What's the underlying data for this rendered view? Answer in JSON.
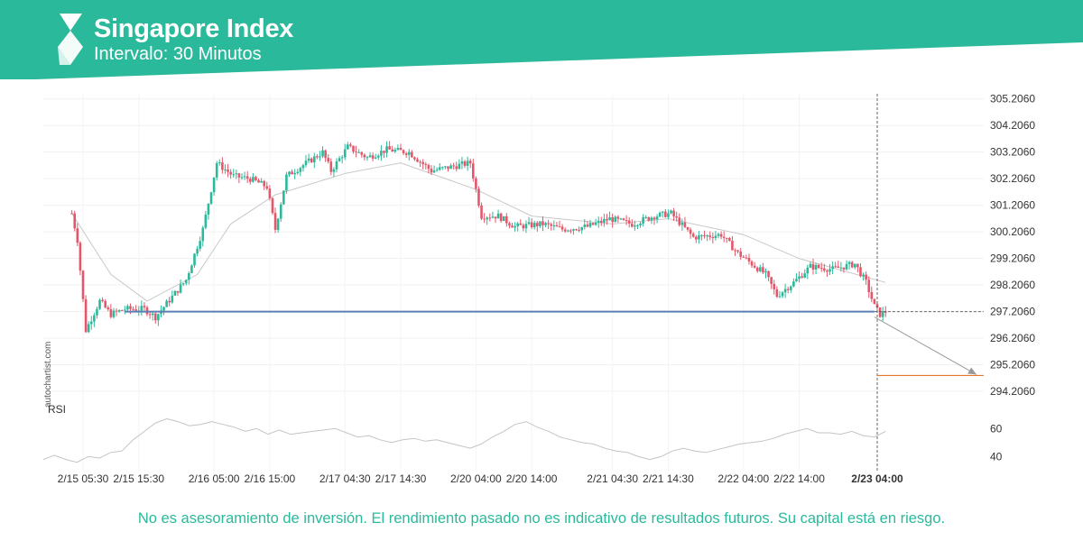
{
  "header": {
    "title": "Singapore Index",
    "subtitle": "Intervalo: 30 Minutos",
    "colors": {
      "band": "#2bb99b",
      "band_dark": "#1f9e84",
      "logo": "#ffffff"
    }
  },
  "brand": "autochartist.com",
  "disclaimer": "No es asesoramiento de inversión. El rendimiento pasado no es indicativo de resultados futuros. Su capital está en riesgo.",
  "chart_data": {
    "type": "candlestick",
    "instrument": "Singapore Index",
    "interval": "30 Minutos",
    "ylim": [
      294.0,
      305.4
    ],
    "y_ticks": [
      "305.2060",
      "304.2060",
      "303.2060",
      "302.2060",
      "301.2060",
      "300.2060",
      "299.2060",
      "298.2060",
      "297.2060",
      "296.2060",
      "295.2060",
      "294.2060"
    ],
    "x_ticks": [
      "2/15 05:30",
      "2/15 15:30",
      "2/16 05:00",
      "2/16 15:00",
      "2/17 04:30",
      "2/17 14:30",
      "2/20 04:00",
      "2/20 14:00",
      "2/21 04:30",
      "2/21 14:30",
      "2/22 04:00",
      "2/22 14:00",
      "2/23 04:00"
    ],
    "highlighted_x_tick": "2/23 04:00",
    "close_anchors": [
      {
        "x": "2/15 03:30",
        "y": 300.9
      },
      {
        "x": "2/15 04:30",
        "y": 299.9
      },
      {
        "x": "2/15 06:00",
        "y": 296.5
      },
      {
        "x": "2/15 08:30",
        "y": 297.6
      },
      {
        "x": "2/15 10:30",
        "y": 297.1
      },
      {
        "x": "2/15 13:00",
        "y": 297.3
      },
      {
        "x": "2/15 16:30",
        "y": 297.3
      },
      {
        "x": "2/15 18:30",
        "y": 297.0
      },
      {
        "x": "2/16 00:00",
        "y": 298.4
      },
      {
        "x": "2/16 03:00",
        "y": 300.3
      },
      {
        "x": "2/16 05:30",
        "y": 302.8
      },
      {
        "x": "2/16 08:30",
        "y": 302.3
      },
      {
        "x": "2/16 11:30",
        "y": 302.2
      },
      {
        "x": "2/16 14:30",
        "y": 301.9
      },
      {
        "x": "2/16 16:00",
        "y": 300.3
      },
      {
        "x": "2/16 18:00",
        "y": 302.3
      },
      {
        "x": "2/17 00:30",
        "y": 303.2
      },
      {
        "x": "2/17 02:00",
        "y": 302.5
      },
      {
        "x": "2/17 05:00",
        "y": 303.4
      },
      {
        "x": "2/17 08:30",
        "y": 303.0
      },
      {
        "x": "2/17 12:00",
        "y": 303.3
      },
      {
        "x": "2/17 16:00",
        "y": 303.2
      },
      {
        "x": "2/17 20:00",
        "y": 302.5
      },
      {
        "x": "2/20 03:00",
        "y": 302.8
      },
      {
        "x": "2/20 05:00",
        "y": 300.8
      },
      {
        "x": "2/20 08:00",
        "y": 300.8
      },
      {
        "x": "2/20 11:00",
        "y": 300.4
      },
      {
        "x": "2/20 16:00",
        "y": 300.5
      },
      {
        "x": "2/20 19:30",
        "y": 300.3
      },
      {
        "x": "2/21 00:00",
        "y": 300.4
      },
      {
        "x": "2/21 04:00",
        "y": 300.7
      },
      {
        "x": "2/21 08:00",
        "y": 300.5
      },
      {
        "x": "2/21 12:00",
        "y": 300.8
      },
      {
        "x": "2/21 15:00",
        "y": 300.9
      },
      {
        "x": "2/21 19:00",
        "y": 300.0
      },
      {
        "x": "2/22 00:00",
        "y": 300.1
      },
      {
        "x": "2/22 03:00",
        "y": 299.4
      },
      {
        "x": "2/22 08:00",
        "y": 298.6
      },
      {
        "x": "2/22 10:00",
        "y": 297.8
      },
      {
        "x": "2/22 13:00",
        "y": 298.3
      },
      {
        "x": "2/22 16:00",
        "y": 298.9
      },
      {
        "x": "2/22 20:00",
        "y": 298.8
      },
      {
        "x": "2/23 00:00",
        "y": 299.0
      },
      {
        "x": "2/23 02:00",
        "y": 298.3
      },
      {
        "x": "2/23 03:30",
        "y": 297.4
      },
      {
        "x": "2/23 04:30",
        "y": 297.1
      },
      {
        "x": "2/23 05:30",
        "y": 297.2
      }
    ],
    "extremes": {
      "high": 304.5,
      "low": 296.2
    },
    "moving_average": {
      "name": "MA",
      "color": "#c8c8c8",
      "values": [
        {
          "x": "2/15 03:30",
          "y": 300.9
        },
        {
          "x": "2/15 10:30",
          "y": 298.6
        },
        {
          "x": "2/15 17:00",
          "y": 297.6
        },
        {
          "x": "2/16 02:00",
          "y": 298.6
        },
        {
          "x": "2/16 08:00",
          "y": 300.5
        },
        {
          "x": "2/16 16:00",
          "y": 301.6
        },
        {
          "x": "2/17 04:30",
          "y": 302.4
        },
        {
          "x": "2/17 14:30",
          "y": 302.8
        },
        {
          "x": "2/20 04:00",
          "y": 301.8
        },
        {
          "x": "2/20 14:00",
          "y": 300.8
        },
        {
          "x": "2/21 04:30",
          "y": 300.5
        },
        {
          "x": "2/21 14:30",
          "y": 300.7
        },
        {
          "x": "2/22 04:00",
          "y": 300.1
        },
        {
          "x": "2/22 14:00",
          "y": 299.2
        },
        {
          "x": "2/23 05:30",
          "y": 298.3
        }
      ]
    },
    "support_line": {
      "value": 297.2,
      "from": "2/15 13:00",
      "to": "2/23 03:30",
      "color": "#5b7fb5"
    },
    "current_price": {
      "value": 297.2
    },
    "forecast": {
      "from": {
        "x": "2/23 03:30",
        "y": 297.0
      },
      "to": {
        "x": "2/23 19:00",
        "y": 294.8
      },
      "target": 294.8,
      "color": "#e8772e"
    },
    "rsi": {
      "name": "RSI",
      "y_ticks": [
        "60",
        "40"
      ],
      "values": [
        38,
        41,
        38,
        36,
        40,
        39,
        43,
        44,
        52,
        58,
        64,
        67,
        65,
        62,
        63,
        65,
        63,
        61,
        58,
        60,
        56,
        59,
        56,
        57,
        58,
        59,
        60,
        57,
        54,
        55,
        52,
        50,
        52,
        53,
        51,
        52,
        50,
        48,
        46,
        49,
        54,
        58,
        63,
        65,
        61,
        58,
        54,
        52,
        50,
        49,
        46,
        44,
        43,
        40,
        38,
        40,
        44,
        46,
        44,
        43,
        45,
        47,
        49,
        50,
        51,
        53,
        56,
        58,
        60,
        57,
        57,
        56,
        58,
        55,
        54,
        58
      ]
    }
  }
}
